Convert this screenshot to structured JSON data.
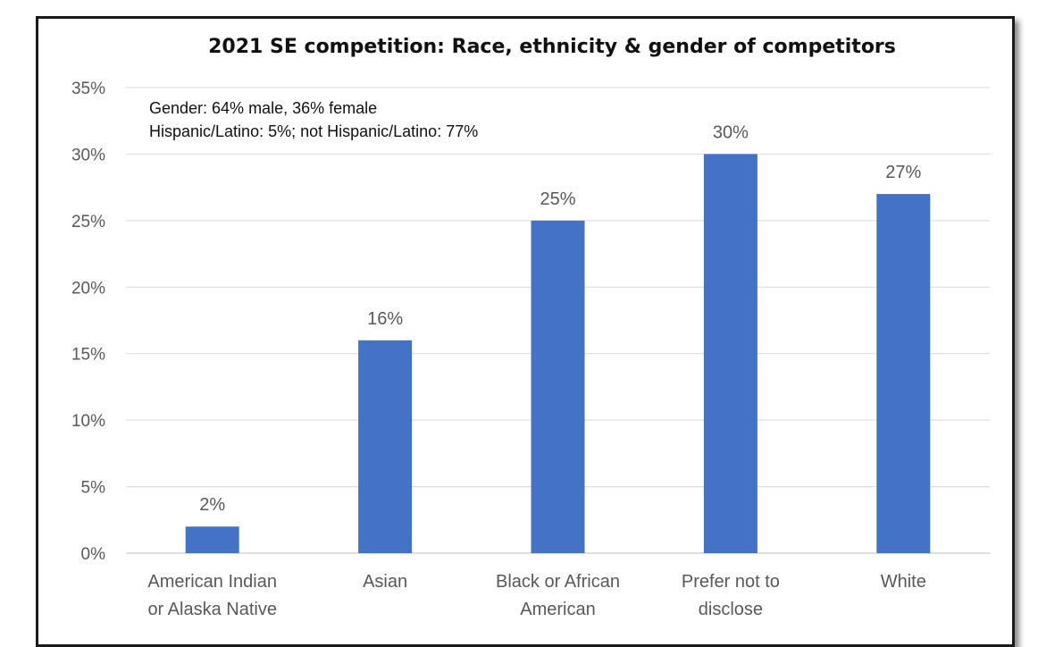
{
  "chart_data": {
    "type": "bar",
    "title": "2021 SE competition: Race, ethnicity & gender of competitors",
    "categories": [
      [
        "American Indian",
        "or Alaska Native"
      ],
      [
        "Asian"
      ],
      [
        "Black or African",
        "American"
      ],
      [
        "Prefer not to",
        "disclose"
      ],
      [
        "White"
      ]
    ],
    "values": [
      2,
      16,
      25,
      30,
      27
    ],
    "data_labels": [
      "2%",
      "16%",
      "25%",
      "30%",
      "27%"
    ],
    "ylim": [
      0,
      35
    ],
    "yticks": [
      0,
      5,
      10,
      15,
      20,
      25,
      30,
      35
    ],
    "ytick_labels": [
      "0%",
      "5%",
      "10%",
      "15%",
      "20%",
      "25%",
      "30%",
      "35%"
    ],
    "xlabel": "",
    "ylabel": "",
    "grid": true,
    "bar_color": "#4472c4",
    "annotations": [
      "Gender: 64% male, 36% female",
      "Hispanic/Latino: 5%; not Hispanic/Latino: 77%"
    ]
  }
}
